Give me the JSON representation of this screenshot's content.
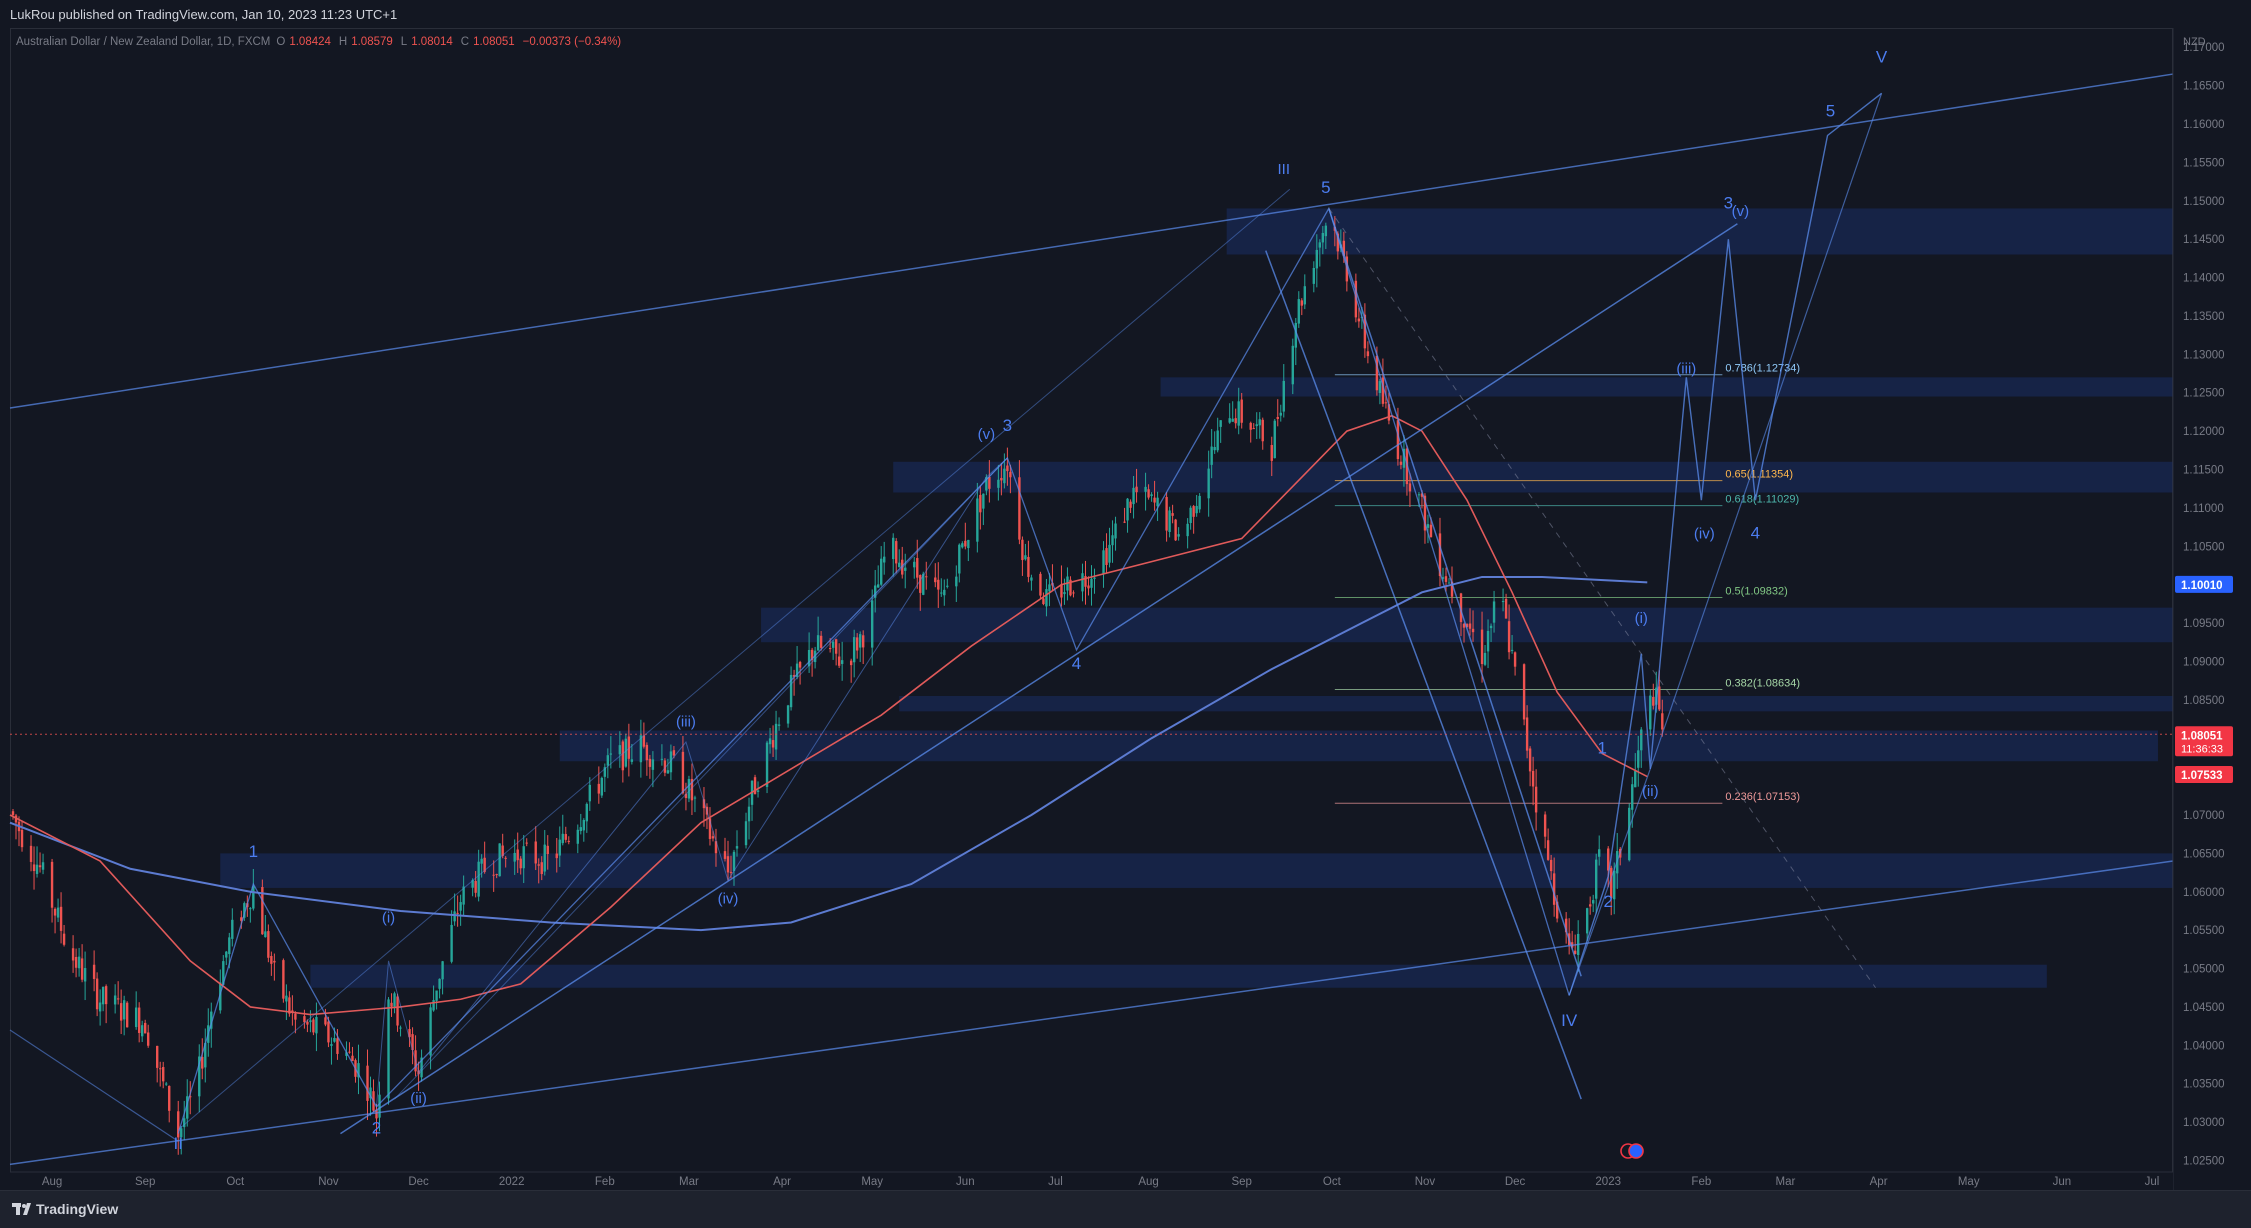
{
  "header": {
    "published_text": "LukRou published on TradingView.com, Jan 10, 2023 11:23 UTC+1"
  },
  "legend": {
    "symbol": "Australian Dollar / New Zealand Dollar, 1D, FXCM",
    "o_label": "O",
    "o_value": "1.08424",
    "h_label": "H",
    "h_value": "1.08579",
    "l_label": "L",
    "l_value": "1.08014",
    "c_label": "C",
    "c_value": "1.08051",
    "change": "−0.00373 (−0.34%)"
  },
  "footer": {
    "brand": "TradingView"
  },
  "colors": {
    "bg": "#131722",
    "up": "#26a69a",
    "down": "#ef5350",
    "wave": "#5b8def",
    "zone": "#1e3a8a"
  },
  "chart_data": {
    "type": "candlestick",
    "currency_label": "NZD",
    "y_ticks": [
      "1.17000",
      "1.16500",
      "1.16000",
      "1.15500",
      "1.15000",
      "1.14500",
      "1.14000",
      "1.13500",
      "1.13000",
      "1.12500",
      "1.12000",
      "1.11500",
      "1.11000",
      "1.10500",
      "1.10000",
      "1.09500",
      "1.09000",
      "1.08500",
      "1.08000",
      "1.07500",
      "1.07000",
      "1.06500",
      "1.06000",
      "1.05500",
      "1.05000",
      "1.04500",
      "1.04000",
      "1.03500",
      "1.03000",
      "1.02500"
    ],
    "ylim": [
      1.0235,
      1.1725
    ],
    "x_labels": [
      "Aug",
      "Sep",
      "Oct",
      "Nov",
      "Dec",
      "2022",
      "Feb",
      "Mar",
      "Apr",
      "May",
      "Jun",
      "Jul",
      "Aug",
      "Sep",
      "Oct",
      "Nov",
      "Dec",
      "2023",
      "Feb",
      "Mar",
      "Apr",
      "May",
      "Jun",
      "Jul"
    ],
    "x_label_days": [
      14,
      45,
      75,
      106,
      136,
      167,
      198,
      226,
      257,
      287,
      318,
      348,
      379,
      410,
      440,
      471,
      501,
      532,
      563,
      591,
      622,
      652,
      683,
      713
    ],
    "x_range_days": [
      0,
      720
    ],
    "price_tags": [
      {
        "value": "1.10010",
        "price": 1.1001,
        "color": "#2962ff"
      },
      {
        "value": "1.08051",
        "sub": "11:36:33",
        "price": 1.08051,
        "color": "#f23645"
      },
      {
        "value": "1.07533",
        "price": 1.07533,
        "color": "#f23645"
      }
    ],
    "last_close": 1.08051,
    "fib_levels": [
      {
        "label": "0.786(1.12734)",
        "price": 1.12734,
        "color": "#90caf9"
      },
      {
        "label": "0.65(1.11354)",
        "price": 1.11354,
        "color": "#ffb74d"
      },
      {
        "label": "0.618(1.11029)",
        "price": 1.11029,
        "color": "#4db6ac"
      },
      {
        "label": "0.5(1.09832)",
        "price": 1.09832,
        "color": "#81c784"
      },
      {
        "label": "0.382(1.08634)",
        "price": 1.08634,
        "color": "#a5d6a7"
      },
      {
        "label": "0.236(1.07153)",
        "price": 1.07153,
        "color": "#ef9a9a"
      }
    ],
    "zones": [
      {
        "d1": 405,
        "d2": 720,
        "p1": 1.143,
        "p2": 1.149
      },
      {
        "d1": 383,
        "d2": 720,
        "p1": 1.1245,
        "p2": 1.127
      },
      {
        "d1": 294,
        "d2": 720,
        "p1": 1.112,
        "p2": 1.116
      },
      {
        "d1": 250,
        "d2": 720,
        "p1": 1.0925,
        "p2": 1.097
      },
      {
        "d1": 296,
        "d2": 720,
        "p1": 1.0835,
        "p2": 1.0855
      },
      {
        "d1": 183,
        "d2": 715,
        "p1": 1.077,
        "p2": 1.081
      },
      {
        "d1": 70,
        "d2": 720,
        "p1": 1.0605,
        "p2": 1.065
      },
      {
        "d1": 100,
        "d2": 678,
        "p1": 1.0475,
        "p2": 1.0505
      }
    ],
    "wave_labels": [
      {
        "text": "II",
        "d": 56,
        "p": 1.0265
      },
      {
        "text": "1",
        "d": 81,
        "p": 1.0645
      },
      {
        "text": "2",
        "d": 122,
        "p": 1.0285
      },
      {
        "text": "(i)",
        "d": 126,
        "p": 1.056
      },
      {
        "text": "(ii)",
        "d": 136,
        "p": 1.0325
      },
      {
        "text": "(iii)",
        "d": 225,
        "p": 1.0815
      },
      {
        "text": "(iv)",
        "d": 239,
        "p": 1.0585
      },
      {
        "text": "(v)",
        "d": 325,
        "p": 1.119
      },
      {
        "text": "3",
        "d": 332,
        "p": 1.12
      },
      {
        "text": "4",
        "d": 355,
        "p": 1.089
      },
      {
        "text": "III",
        "d": 424,
        "p": 1.1535
      },
      {
        "text": "5",
        "d": 438,
        "p": 1.151
      },
      {
        "text": "IV",
        "d": 519,
        "p": 1.0425
      },
      {
        "text": "1",
        "d": 530,
        "p": 1.078
      },
      {
        "text": "2",
        "d": 532,
        "p": 1.058
      },
      {
        "text": "(i)",
        "d": 543,
        "p": 1.095
      },
      {
        "text": "(ii)",
        "d": 546,
        "p": 1.0725
      },
      {
        "text": "(iii)",
        "d": 558,
        "p": 1.1275
      },
      {
        "text": "(iv)",
        "d": 564,
        "p": 1.106
      },
      {
        "text": "4",
        "d": 581,
        "p": 1.106
      },
      {
        "text": "3",
        "d": 572,
        "p": 1.149
      },
      {
        "text": "(v)",
        "d": 576,
        "p": 1.148
      },
      {
        "text": "5",
        "d": 606,
        "p": 1.161
      },
      {
        "text": "V",
        "d": 623,
        "p": 1.168
      }
    ]
  }
}
